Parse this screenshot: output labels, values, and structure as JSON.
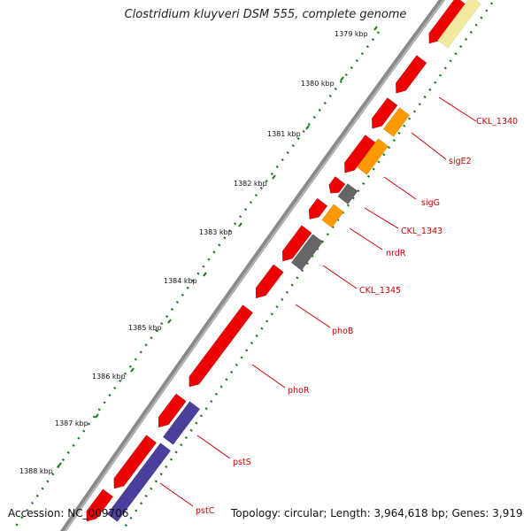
{
  "title": "Clostridium kluyveri DSM 555, complete genome",
  "footer": {
    "accession": "Accession: NC_009706",
    "summary": "Topology: circular; Length: 3,964,618 bp; Genes: 3,919"
  },
  "colors": {
    "backbone": "#8a8a8a",
    "forward_gene": "#ee0000",
    "reverse_gene": "#4a3f9a",
    "orange_gene": "#ff9900",
    "gray_gene": "#666666",
    "yellow_gene": "#f3eaa0",
    "label": "#cc0000",
    "tick": "#1a7a1a"
  },
  "ticks": [
    {
      "label": "1379 kbp"
    },
    {
      "label": "1380 kbp"
    },
    {
      "label": "1381 kbp"
    },
    {
      "label": "1382 kbp"
    },
    {
      "label": "1383 kbp"
    },
    {
      "label": "1384 kbp"
    },
    {
      "label": "1385 kbp"
    },
    {
      "label": "1386 kbp"
    },
    {
      "label": "1387 kbp"
    },
    {
      "label": "1388 kbp"
    }
  ],
  "gene_labels": [
    {
      "label": "CKL_1340"
    },
    {
      "label": "sigE2"
    },
    {
      "label": "sigG"
    },
    {
      "label": "CKL_1343"
    },
    {
      "label": "nrdR"
    },
    {
      "label": "CKL_1345"
    },
    {
      "label": "phoB"
    },
    {
      "label": "phoR"
    },
    {
      "label": "pstS"
    },
    {
      "label": "pstC"
    }
  ]
}
